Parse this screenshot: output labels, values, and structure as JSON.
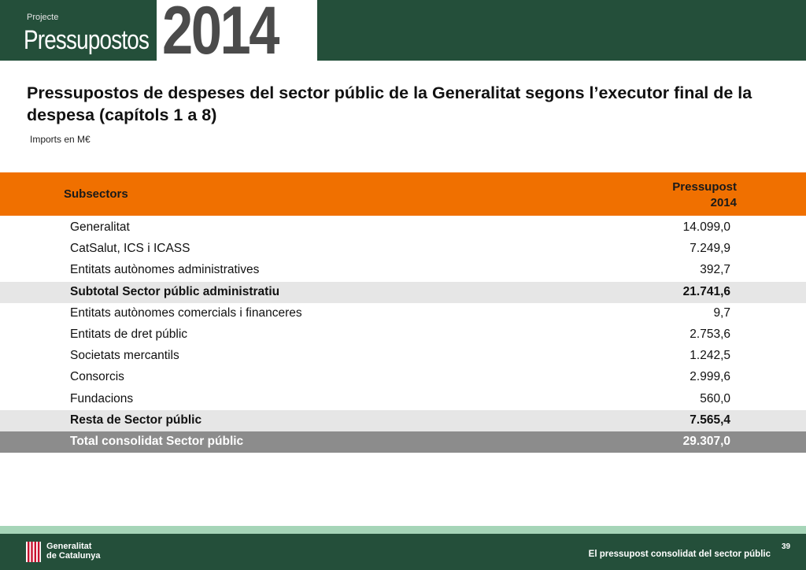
{
  "header": {
    "kicker": "Projecte",
    "title": "Pressupostos",
    "year": "2014"
  },
  "document": {
    "title": "Pressupostos de despeses del sector públic de la Generalitat  segons l’executor final de la despesa (capítols 1 a 8)",
    "subtitle": "Imports en M€"
  },
  "table": {
    "col_subsectors": "Subsectors",
    "col_budget_line1": "Pressupost",
    "col_budget_line2": "2014",
    "rows": [
      {
        "label": "Generalitat",
        "value": "14.099,0"
      },
      {
        "label": "CatSalut, ICS i ICASS",
        "value": "7.249,9"
      },
      {
        "label": "Entitats autònomes administratives",
        "value": "392,7"
      },
      {
        "label": "Subtotal Sector públic administratiu",
        "value": "21.741,6"
      },
      {
        "label": "Entitats autònomes comercials i financeres",
        "value": "9,7"
      },
      {
        "label": "Entitats de dret públic",
        "value": "2.753,6"
      },
      {
        "label": "Societats mercantils",
        "value": "1.242,5"
      },
      {
        "label": "Consorcis",
        "value": "2.999,6"
      },
      {
        "label": "Fundacions",
        "value": "560,0"
      },
      {
        "label": "Resta de Sector públic",
        "value": "7.565,4"
      },
      {
        "label": "Total consolidat Sector públic",
        "value": "29.307,0"
      }
    ]
  },
  "footer": {
    "logo_line1": "Generalitat",
    "logo_line2": "de Catalunya",
    "page_number": "39",
    "caption": "El pressupost consolidat del sector públic"
  },
  "colors": {
    "header_green": "#244f3a",
    "table_header_orange": "#f07000",
    "subtotal_gray": "#e6e6e6",
    "total_gray": "#8c8c8c",
    "footer_stripe": "#a6d5b8"
  }
}
